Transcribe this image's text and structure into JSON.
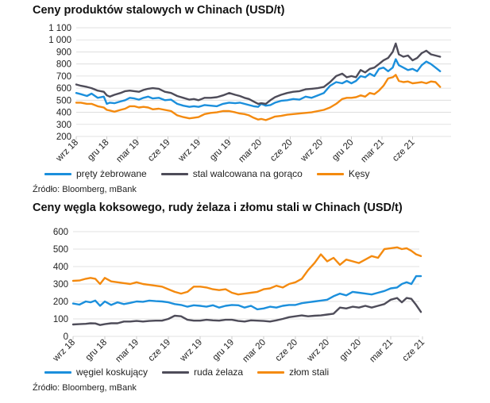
{
  "colors": {
    "blue": "#1b8fdc",
    "gray": "#4e4c59",
    "orange": "#f48a0f",
    "grid": "#d9d9d9",
    "axis": "#bfbfbf"
  },
  "chart_data": [
    {
      "type": "line",
      "title": "Ceny produktów stalowych w Chinach (USD/t)",
      "source": "Źródło: Bloomberg, mBank",
      "ylim": [
        200,
        1100
      ],
      "yticks": [
        "200",
        "300",
        "400",
        "500",
        "600",
        "700",
        "800",
        "900",
        "1 000",
        "1 100"
      ],
      "xticks": [
        "wrz 18",
        "gru 18",
        "mar 19",
        "cze 19",
        "wrz 19",
        "gru 19",
        "mar 20",
        "cze 20",
        "wrz 20",
        "gru 20",
        "mar 21",
        "cze 21"
      ],
      "grid": true,
      "legend_position": "bottom",
      "series": [
        {
          "name": "pręty żebrowane",
          "color": "#1b8fdc",
          "x": [
            0,
            0.15,
            0.35,
            0.5,
            0.7,
            0.9,
            1.0,
            1.1,
            1.25,
            1.45,
            1.6,
            1.75,
            1.9,
            2.05,
            2.2,
            2.35,
            2.5,
            2.7,
            2.9,
            3.1,
            3.3,
            3.5,
            3.7,
            3.85,
            4.0,
            4.2,
            4.4,
            4.6,
            4.8,
            5.0,
            5.2,
            5.35,
            5.5,
            5.65,
            5.8,
            5.95,
            6.05,
            6.2,
            6.35,
            6.5,
            6.7,
            6.9,
            7.1,
            7.3,
            7.5,
            7.7,
            7.9,
            8.1,
            8.3,
            8.5,
            8.7,
            8.85,
            9.0,
            9.15,
            9.3,
            9.45,
            9.6,
            9.75,
            9.9,
            10.05,
            10.2,
            10.35,
            10.45,
            10.55,
            10.7,
            10.85,
            11.0,
            11.15,
            11.3,
            11.45,
            11.6,
            11.75,
            11.9
          ],
          "values": [
            560,
            550,
            535,
            555,
            520,
            530,
            470,
            480,
            475,
            490,
            500,
            520,
            515,
            505,
            520,
            530,
            515,
            520,
            500,
            505,
            470,
            455,
            445,
            450,
            445,
            460,
            455,
            450,
            470,
            480,
            475,
            480,
            470,
            460,
            450,
            445,
            470,
            455,
            460,
            480,
            495,
            500,
            510,
            505,
            530,
            520,
            540,
            560,
            620,
            650,
            640,
            660,
            640,
            660,
            700,
            690,
            720,
            700,
            760,
            770,
            740,
            770,
            840,
            790,
            770,
            750,
            760,
            740,
            790,
            820,
            800,
            770,
            740
          ]
        },
        {
          "name": "stal walcowana na gorąco",
          "color": "#4e4c59",
          "x": [
            0,
            0.15,
            0.35,
            0.5,
            0.7,
            0.9,
            1.0,
            1.1,
            1.25,
            1.45,
            1.6,
            1.75,
            1.9,
            2.05,
            2.2,
            2.35,
            2.5,
            2.7,
            2.9,
            3.1,
            3.3,
            3.5,
            3.7,
            3.85,
            4.0,
            4.2,
            4.4,
            4.6,
            4.8,
            5.0,
            5.2,
            5.35,
            5.5,
            5.65,
            5.8,
            5.95,
            6.05,
            6.2,
            6.35,
            6.5,
            6.7,
            6.9,
            7.1,
            7.3,
            7.5,
            7.7,
            7.9,
            8.1,
            8.3,
            8.5,
            8.7,
            8.85,
            9.0,
            9.15,
            9.3,
            9.45,
            9.6,
            9.75,
            9.9,
            10.05,
            10.2,
            10.35,
            10.45,
            10.55,
            10.7,
            10.85,
            11.0,
            11.15,
            11.3,
            11.45,
            11.6,
            11.75,
            11.9
          ],
          "values": [
            630,
            620,
            610,
            600,
            580,
            570,
            540,
            530,
            545,
            560,
            575,
            580,
            575,
            570,
            585,
            595,
            600,
            595,
            570,
            560,
            535,
            520,
            505,
            510,
            500,
            520,
            520,
            525,
            540,
            560,
            545,
            535,
            520,
            510,
            490,
            470,
            475,
            470,
            500,
            525,
            545,
            560,
            570,
            575,
            590,
            595,
            600,
            610,
            650,
            700,
            720,
            690,
            700,
            690,
            750,
            730,
            760,
            770,
            800,
            830,
            850,
            900,
            970,
            880,
            860,
            870,
            830,
            850,
            890,
            910,
            880,
            870,
            860
          ]
        },
        {
          "name": "Kęsy",
          "color": "#f48a0f",
          "x": [
            0,
            0.15,
            0.35,
            0.5,
            0.7,
            0.9,
            1.0,
            1.1,
            1.25,
            1.45,
            1.6,
            1.75,
            1.9,
            2.05,
            2.2,
            2.35,
            2.5,
            2.7,
            2.9,
            3.1,
            3.3,
            3.5,
            3.7,
            3.85,
            4.0,
            4.2,
            4.4,
            4.6,
            4.8,
            5.0,
            5.2,
            5.35,
            5.5,
            5.65,
            5.8,
            5.95,
            6.05,
            6.2,
            6.35,
            6.5,
            6.7,
            6.9,
            7.1,
            7.3,
            7.5,
            7.7,
            7.9,
            8.1,
            8.3,
            8.5,
            8.7,
            8.85,
            9.0,
            9.15,
            9.3,
            9.45,
            9.6,
            9.75,
            9.9,
            10.05,
            10.2,
            10.35,
            10.45,
            10.55,
            10.7,
            10.85,
            11.0,
            11.15,
            11.3,
            11.45,
            11.6,
            11.75,
            11.9
          ],
          "values": [
            480,
            480,
            470,
            470,
            450,
            440,
            420,
            415,
            405,
            420,
            430,
            450,
            450,
            440,
            445,
            440,
            425,
            430,
            420,
            410,
            375,
            360,
            350,
            355,
            360,
            385,
            395,
            400,
            410,
            410,
            400,
            390,
            385,
            375,
            355,
            340,
            345,
            335,
            350,
            365,
            370,
            380,
            385,
            390,
            395,
            400,
            410,
            420,
            440,
            470,
            510,
            520,
            520,
            525,
            540,
            530,
            560,
            550,
            580,
            620,
            680,
            690,
            710,
            660,
            650,
            655,
            640,
            645,
            650,
            640,
            655,
            650,
            610
          ]
        }
      ]
    },
    {
      "type": "line",
      "title": "Ceny węgla koksowego, rudy żelaza i złomu stali w Chinach (USD/t)",
      "source": "Źródło: Bloomberg, mBank",
      "ylim": [
        0,
        600
      ],
      "yticks": [
        "0",
        "100",
        "200",
        "300",
        "400",
        "500",
        "600"
      ],
      "xticks": [
        "wrz 18",
        "gru 18",
        "mar 19",
        "cze 19",
        "wrz 19",
        "gru 19",
        "mar 20",
        "cze 20",
        "wrz 20",
        "gru 20",
        "mar 21",
        "cze 21"
      ],
      "grid": true,
      "legend_position": "bottom",
      "series": [
        {
          "name": "węgiel koskujący",
          "color": "#1b8fdc",
          "x": [
            0,
            0.2,
            0.4,
            0.55,
            0.7,
            0.85,
            1.0,
            1.2,
            1.4,
            1.6,
            1.8,
            2.0,
            2.2,
            2.4,
            2.6,
            2.8,
            3.0,
            3.2,
            3.4,
            3.6,
            3.8,
            4.0,
            4.2,
            4.4,
            4.6,
            4.8,
            5.0,
            5.2,
            5.4,
            5.6,
            5.8,
            6.0,
            6.2,
            6.4,
            6.6,
            6.8,
            7.0,
            7.2,
            7.4,
            7.6,
            7.8,
            8.0,
            8.2,
            8.4,
            8.6,
            8.8,
            9.0,
            9.2,
            9.4,
            9.6,
            9.8,
            10.0,
            10.2,
            10.35,
            10.5,
            10.65,
            10.8,
            10.95
          ],
          "values": [
            188,
            182,
            200,
            195,
            205,
            175,
            200,
            180,
            195,
            185,
            192,
            200,
            198,
            205,
            202,
            200,
            195,
            185,
            180,
            170,
            178,
            175,
            170,
            178,
            165,
            175,
            180,
            178,
            165,
            175,
            155,
            160,
            170,
            165,
            175,
            180,
            180,
            190,
            195,
            200,
            205,
            210,
            230,
            245,
            235,
            255,
            250,
            245,
            240,
            250,
            260,
            275,
            280,
            300,
            310,
            300,
            345,
            345
          ]
        },
        {
          "name": "ruda żelaza",
          "color": "#4e4c59",
          "x": [
            0,
            0.2,
            0.4,
            0.55,
            0.7,
            0.85,
            1.0,
            1.2,
            1.4,
            1.6,
            1.8,
            2.0,
            2.2,
            2.4,
            2.6,
            2.8,
            3.0,
            3.2,
            3.4,
            3.6,
            3.8,
            4.0,
            4.2,
            4.4,
            4.6,
            4.8,
            5.0,
            5.2,
            5.4,
            5.6,
            5.8,
            6.0,
            6.2,
            6.4,
            6.6,
            6.8,
            7.0,
            7.2,
            7.4,
            7.6,
            7.8,
            8.0,
            8.2,
            8.4,
            8.6,
            8.8,
            9.0,
            9.2,
            9.4,
            9.6,
            9.8,
            10.0,
            10.2,
            10.35,
            10.5,
            10.65,
            10.8,
            10.95
          ],
          "values": [
            68,
            70,
            72,
            75,
            74,
            65,
            70,
            75,
            75,
            85,
            85,
            88,
            85,
            88,
            90,
            90,
            100,
            118,
            115,
            95,
            90,
            90,
            95,
            92,
            90,
            95,
            95,
            88,
            85,
            92,
            90,
            88,
            85,
            92,
            100,
            110,
            115,
            120,
            115,
            118,
            120,
            125,
            130,
            165,
            160,
            170,
            165,
            175,
            165,
            175,
            185,
            210,
            220,
            195,
            220,
            215,
            180,
            140
          ]
        },
        {
          "name": "złom stali",
          "color": "#f48a0f",
          "x": [
            0,
            0.2,
            0.4,
            0.55,
            0.7,
            0.85,
            1.0,
            1.2,
            1.4,
            1.6,
            1.8,
            2.0,
            2.2,
            2.4,
            2.6,
            2.8,
            3.0,
            3.2,
            3.4,
            3.6,
            3.8,
            4.0,
            4.2,
            4.4,
            4.6,
            4.8,
            5.0,
            5.2,
            5.4,
            5.6,
            5.8,
            6.0,
            6.2,
            6.4,
            6.6,
            6.8,
            7.0,
            7.2,
            7.4,
            7.6,
            7.8,
            8.0,
            8.2,
            8.4,
            8.6,
            8.8,
            9.0,
            9.2,
            9.4,
            9.6,
            9.8,
            10.0,
            10.2,
            10.35,
            10.5,
            10.65,
            10.8,
            10.95
          ],
          "values": [
            318,
            320,
            330,
            335,
            330,
            300,
            335,
            315,
            310,
            305,
            300,
            310,
            300,
            295,
            290,
            285,
            270,
            255,
            245,
            255,
            285,
            285,
            280,
            270,
            265,
            270,
            250,
            240,
            245,
            250,
            255,
            270,
            275,
            290,
            280,
            300,
            310,
            330,
            380,
            420,
            470,
            430,
            450,
            410,
            440,
            430,
            420,
            440,
            460,
            450,
            500,
            505,
            510,
            500,
            505,
            490,
            470,
            460
          ]
        }
      ]
    }
  ]
}
